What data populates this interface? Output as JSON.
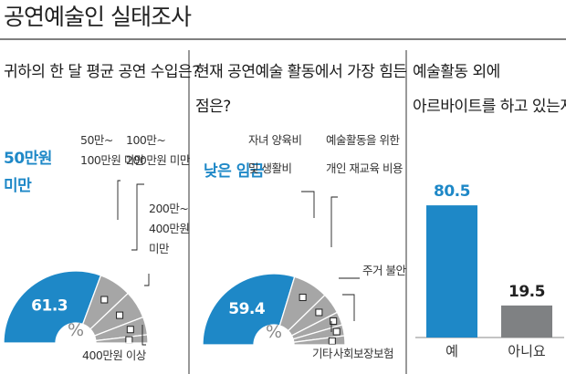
{
  "title": "공연예술인 실태조사",
  "colors": {
    "accent": "#1e88c7",
    "gray": "#a6a6a6",
    "dark_gray": "#7f8183",
    "pale": "#cfe3f3"
  },
  "panels": {
    "p1": {
      "title": "귀하의 한 달 평균 공연 수입은?"
    },
    "p2": {
      "title_lines": [
        "현재 공연예술 활동에서 가장 힘든",
        "점은?"
      ]
    },
    "p3": {
      "title_lines": [
        "예술활동 외에",
        "아르바이트를 하고 있는지?"
      ]
    }
  },
  "chart_data": [
    {
      "type": "pie",
      "title": "귀하의 한 달 평균 공연 수입은?",
      "center_label": "%",
      "slices": [
        {
          "label_lines": [
            "50만원",
            "미만"
          ],
          "value": 61.3,
          "value_label": "61.3",
          "highlight": true
        },
        {
          "label_lines": [
            "50만~",
            "100만원 미만"
          ],
          "value": 14.5
        },
        {
          "label_lines": [
            "100만~",
            "200만원 미만"
          ],
          "value": 12.5
        },
        {
          "label_lines": [
            "200만~",
            "400만원",
            "미만"
          ],
          "value": 8.0
        },
        {
          "label_lines": [
            "400만원 이상"
          ],
          "value": 3.7
        }
      ]
    },
    {
      "type": "pie",
      "title": "현재 공연예술 활동에서 가장 힘든 점은?",
      "center_label": "%",
      "slices": [
        {
          "label_lines": [
            "낮은 임금"
          ],
          "value": 59.4,
          "value_label": "59.4",
          "highlight": true
        },
        {
          "label_lines": [
            "자녀 양육비",
            "및 생활비"
          ],
          "value": 16.0
        },
        {
          "label_lines": [
            "예술활동을 위한",
            "개인 재교육 비용"
          ],
          "value": 9.5
        },
        {
          "label_lines": [
            "주거 불안"
          ],
          "value": 6.0
        },
        {
          "label_lines": [
            "사회보장보험"
          ],
          "value": 5.0
        },
        {
          "label_lines": [
            "기타"
          ],
          "value": 4.1
        }
      ]
    },
    {
      "type": "bar",
      "title": "예술활동 외에 아르바이트를 하고 있는지?",
      "categories": [
        "예",
        "아니요"
      ],
      "values": [
        80.5,
        19.5
      ],
      "value_labels": [
        "80.5",
        "19.5"
      ],
      "ylim": [
        0,
        100
      ]
    }
  ]
}
